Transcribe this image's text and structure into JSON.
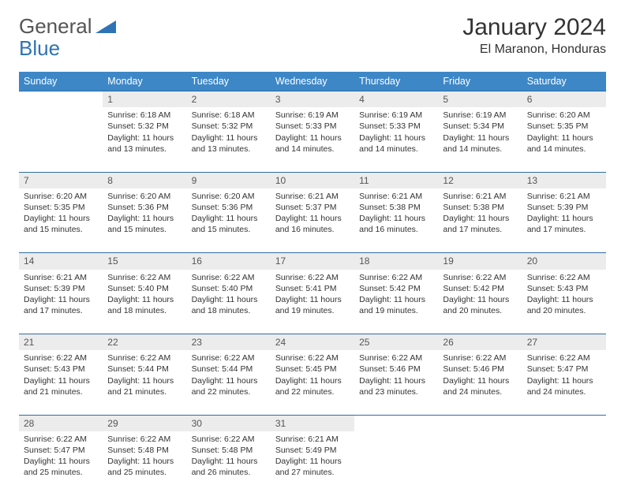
{
  "brand": {
    "part1": "General",
    "part2": "Blue"
  },
  "title": "January 2024",
  "location": "El Maranon, Honduras",
  "colors": {
    "header_bg": "#3d87c7",
    "header_text": "#ffffff",
    "daynum_bg": "#ececec",
    "row_border": "#2e6da4",
    "brand_blue": "#2e74b5",
    "text": "#333333",
    "bg": "#ffffff"
  },
  "day_headers": [
    "Sunday",
    "Monday",
    "Tuesday",
    "Wednesday",
    "Thursday",
    "Friday",
    "Saturday"
  ],
  "weeks": [
    {
      "nums": [
        "",
        "1",
        "2",
        "3",
        "4",
        "5",
        "6"
      ],
      "cells": [
        [],
        [
          "Sunrise: 6:18 AM",
          "Sunset: 5:32 PM",
          "Daylight: 11 hours",
          "and 13 minutes."
        ],
        [
          "Sunrise: 6:18 AM",
          "Sunset: 5:32 PM",
          "Daylight: 11 hours",
          "and 13 minutes."
        ],
        [
          "Sunrise: 6:19 AM",
          "Sunset: 5:33 PM",
          "Daylight: 11 hours",
          "and 14 minutes."
        ],
        [
          "Sunrise: 6:19 AM",
          "Sunset: 5:33 PM",
          "Daylight: 11 hours",
          "and 14 minutes."
        ],
        [
          "Sunrise: 6:19 AM",
          "Sunset: 5:34 PM",
          "Daylight: 11 hours",
          "and 14 minutes."
        ],
        [
          "Sunrise: 6:20 AM",
          "Sunset: 5:35 PM",
          "Daylight: 11 hours",
          "and 14 minutes."
        ]
      ]
    },
    {
      "nums": [
        "7",
        "8",
        "9",
        "10",
        "11",
        "12",
        "13"
      ],
      "cells": [
        [
          "Sunrise: 6:20 AM",
          "Sunset: 5:35 PM",
          "Daylight: 11 hours",
          "and 15 minutes."
        ],
        [
          "Sunrise: 6:20 AM",
          "Sunset: 5:36 PM",
          "Daylight: 11 hours",
          "and 15 minutes."
        ],
        [
          "Sunrise: 6:20 AM",
          "Sunset: 5:36 PM",
          "Daylight: 11 hours",
          "and 15 minutes."
        ],
        [
          "Sunrise: 6:21 AM",
          "Sunset: 5:37 PM",
          "Daylight: 11 hours",
          "and 16 minutes."
        ],
        [
          "Sunrise: 6:21 AM",
          "Sunset: 5:38 PM",
          "Daylight: 11 hours",
          "and 16 minutes."
        ],
        [
          "Sunrise: 6:21 AM",
          "Sunset: 5:38 PM",
          "Daylight: 11 hours",
          "and 17 minutes."
        ],
        [
          "Sunrise: 6:21 AM",
          "Sunset: 5:39 PM",
          "Daylight: 11 hours",
          "and 17 minutes."
        ]
      ]
    },
    {
      "nums": [
        "14",
        "15",
        "16",
        "17",
        "18",
        "19",
        "20"
      ],
      "cells": [
        [
          "Sunrise: 6:21 AM",
          "Sunset: 5:39 PM",
          "Daylight: 11 hours",
          "and 17 minutes."
        ],
        [
          "Sunrise: 6:22 AM",
          "Sunset: 5:40 PM",
          "Daylight: 11 hours",
          "and 18 minutes."
        ],
        [
          "Sunrise: 6:22 AM",
          "Sunset: 5:40 PM",
          "Daylight: 11 hours",
          "and 18 minutes."
        ],
        [
          "Sunrise: 6:22 AM",
          "Sunset: 5:41 PM",
          "Daylight: 11 hours",
          "and 19 minutes."
        ],
        [
          "Sunrise: 6:22 AM",
          "Sunset: 5:42 PM",
          "Daylight: 11 hours",
          "and 19 minutes."
        ],
        [
          "Sunrise: 6:22 AM",
          "Sunset: 5:42 PM",
          "Daylight: 11 hours",
          "and 20 minutes."
        ],
        [
          "Sunrise: 6:22 AM",
          "Sunset: 5:43 PM",
          "Daylight: 11 hours",
          "and 20 minutes."
        ]
      ]
    },
    {
      "nums": [
        "21",
        "22",
        "23",
        "24",
        "25",
        "26",
        "27"
      ],
      "cells": [
        [
          "Sunrise: 6:22 AM",
          "Sunset: 5:43 PM",
          "Daylight: 11 hours",
          "and 21 minutes."
        ],
        [
          "Sunrise: 6:22 AM",
          "Sunset: 5:44 PM",
          "Daylight: 11 hours",
          "and 21 minutes."
        ],
        [
          "Sunrise: 6:22 AM",
          "Sunset: 5:44 PM",
          "Daylight: 11 hours",
          "and 22 minutes."
        ],
        [
          "Sunrise: 6:22 AM",
          "Sunset: 5:45 PM",
          "Daylight: 11 hours",
          "and 22 minutes."
        ],
        [
          "Sunrise: 6:22 AM",
          "Sunset: 5:46 PM",
          "Daylight: 11 hours",
          "and 23 minutes."
        ],
        [
          "Sunrise: 6:22 AM",
          "Sunset: 5:46 PM",
          "Daylight: 11 hours",
          "and 24 minutes."
        ],
        [
          "Sunrise: 6:22 AM",
          "Sunset: 5:47 PM",
          "Daylight: 11 hours",
          "and 24 minutes."
        ]
      ]
    },
    {
      "nums": [
        "28",
        "29",
        "30",
        "31",
        "",
        "",
        ""
      ],
      "cells": [
        [
          "Sunrise: 6:22 AM",
          "Sunset: 5:47 PM",
          "Daylight: 11 hours",
          "and 25 minutes."
        ],
        [
          "Sunrise: 6:22 AM",
          "Sunset: 5:48 PM",
          "Daylight: 11 hours",
          "and 25 minutes."
        ],
        [
          "Sunrise: 6:22 AM",
          "Sunset: 5:48 PM",
          "Daylight: 11 hours",
          "and 26 minutes."
        ],
        [
          "Sunrise: 6:21 AM",
          "Sunset: 5:49 PM",
          "Daylight: 11 hours",
          "and 27 minutes."
        ],
        [],
        [],
        []
      ]
    }
  ]
}
